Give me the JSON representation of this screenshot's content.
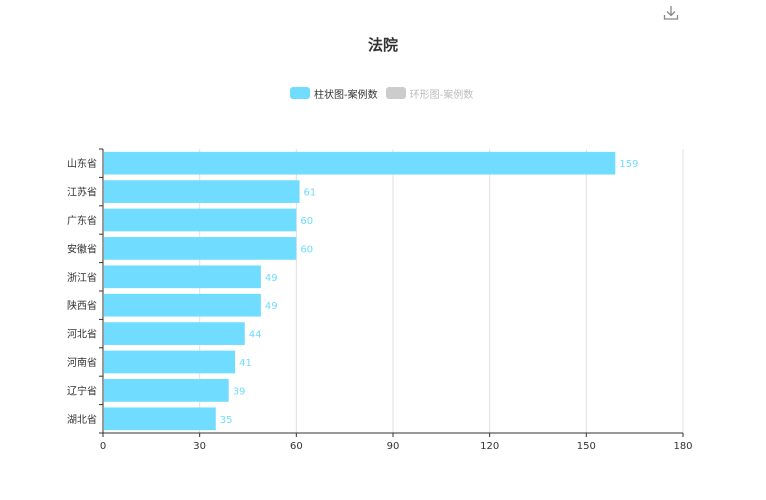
{
  "title": "法院",
  "toolbar": {
    "download_icon": "download-icon"
  },
  "legend": {
    "items": [
      {
        "label": "柱状图-案例数",
        "color": "#70dcff",
        "active": true
      },
      {
        "label": "环形图-案例数",
        "color": "#cccccc",
        "active": false
      }
    ]
  },
  "colors": {
    "bar": "#70dcff",
    "axis": "#333333",
    "grid": "#e0e0e0"
  },
  "chart_data": {
    "type": "bar",
    "orientation": "horizontal",
    "title": "法院",
    "categories": [
      "山东省",
      "江苏省",
      "广东省",
      "安徽省",
      "浙江省",
      "陕西省",
      "河北省",
      "河南省",
      "辽宁省",
      "湖北省"
    ],
    "series": [
      {
        "name": "柱状图-案例数",
        "values": [
          159,
          61,
          60,
          60,
          49,
          49,
          44,
          41,
          39,
          35
        ]
      }
    ],
    "xlim": [
      0,
      180
    ],
    "xticks": [
      0,
      30,
      60,
      90,
      120,
      150,
      180
    ],
    "grid": true,
    "legend_position": "top-center"
  }
}
